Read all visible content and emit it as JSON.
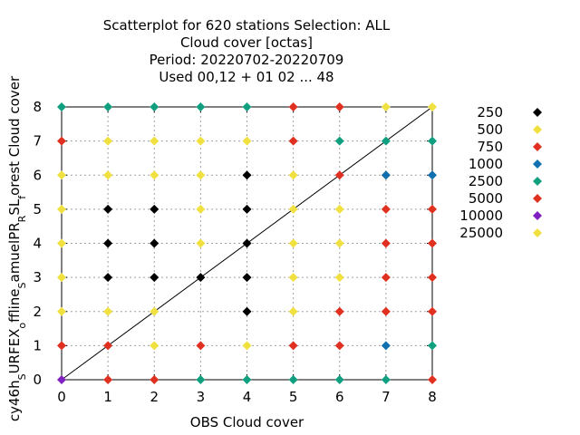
{
  "chart_data": {
    "type": "scatter",
    "title_lines": [
      "Scatterplot for  620 stations Selection: ALL",
      "Cloud cover [octas]",
      "Period: 20220702-20220709",
      "Used  00,12  + 01 02 ... 48"
    ],
    "xlabel": "OBS Cloud cover",
    "ylabel": "cy46h_SURFEX_offline_SamuelPR_RSL_forest Cloud cover",
    "ylabel_parts": [
      {
        "text": "cy46h",
        "sub": false
      },
      {
        "text": "S",
        "sub": true
      },
      {
        "text": "URFEX",
        "sub": false
      },
      {
        "text": "o",
        "sub": true
      },
      {
        "text": "ffline",
        "sub": false
      },
      {
        "text": "S",
        "sub": true
      },
      {
        "text": "amuelPR",
        "sub": false
      },
      {
        "text": "R",
        "sub": true
      },
      {
        "text": "SL",
        "sub": false
      },
      {
        "text": "f",
        "sub": true
      },
      {
        "text": "orest Cloud cover",
        "sub": false
      }
    ],
    "xlim": [
      0,
      8
    ],
    "ylim": [
      0,
      8
    ],
    "xticks": [
      "0",
      "1",
      "2",
      "3",
      "4",
      "5",
      "6",
      "7",
      "8"
    ],
    "yticks": [
      "0",
      "1",
      "2",
      "3",
      "4",
      "5",
      "6",
      "7",
      "8"
    ],
    "grid": true,
    "diagonal": true,
    "legend_position": "right",
    "series": [
      {
        "name": "250",
        "color": "#000000",
        "points": [
          [
            1,
            3
          ],
          [
            1,
            4
          ],
          [
            1,
            5
          ],
          [
            2,
            3
          ],
          [
            2,
            4
          ],
          [
            2,
            5
          ],
          [
            3,
            3
          ],
          [
            4,
            2
          ],
          [
            4,
            3
          ],
          [
            4,
            4
          ],
          [
            4,
            5
          ],
          [
            4,
            6
          ]
        ]
      },
      {
        "name": "500",
        "color": "#f0e040",
        "points": [
          [
            0,
            2
          ],
          [
            0,
            3
          ],
          [
            0,
            4
          ],
          [
            0,
            5
          ],
          [
            0,
            6
          ],
          [
            1,
            2
          ],
          [
            1,
            6
          ],
          [
            1,
            7
          ],
          [
            2,
            1
          ],
          [
            2,
            2
          ],
          [
            2,
            6
          ],
          [
            2,
            7
          ],
          [
            3,
            4
          ],
          [
            3,
            5
          ],
          [
            3,
            6
          ],
          [
            3,
            7
          ],
          [
            4,
            1
          ],
          [
            4,
            7
          ],
          [
            5,
            2
          ],
          [
            5,
            3
          ],
          [
            5,
            4
          ],
          [
            5,
            5
          ],
          [
            5,
            6
          ],
          [
            6,
            3
          ],
          [
            6,
            4
          ],
          [
            6,
            5
          ],
          [
            7,
            6
          ],
          [
            7,
            8
          ],
          [
            8,
            8
          ]
        ]
      },
      {
        "name": "750",
        "color": "#e03020",
        "points": [
          [
            0,
            1
          ],
          [
            1,
            1
          ],
          [
            3,
            1
          ],
          [
            6,
            2
          ],
          [
            6,
            6
          ],
          [
            7,
            2
          ],
          [
            7,
            3
          ],
          [
            7,
            4
          ],
          [
            7,
            5
          ],
          [
            8,
            2
          ],
          [
            8,
            3
          ],
          [
            8,
            4
          ],
          [
            8,
            5
          ]
        ]
      },
      {
        "name": "1000",
        "color": "#1070b0",
        "points": [
          [
            7,
            1
          ],
          [
            7,
            6
          ],
          [
            8,
            6
          ]
        ]
      },
      {
        "name": "2500",
        "color": "#10a080",
        "points": [
          [
            0,
            8
          ],
          [
            1,
            8
          ],
          [
            2,
            8
          ],
          [
            3,
            0
          ],
          [
            3,
            8
          ],
          [
            4,
            0
          ],
          [
            4,
            8
          ],
          [
            5,
            0
          ],
          [
            6,
            0
          ],
          [
            6,
            7
          ],
          [
            7,
            0
          ],
          [
            7,
            7
          ],
          [
            8,
            1
          ],
          [
            8,
            7
          ]
        ]
      },
      {
        "name": "5000",
        "color": "#e03020",
        "points": [
          [
            0,
            7
          ],
          [
            1,
            0
          ],
          [
            2,
            0
          ],
          [
            5,
            1
          ],
          [
            5,
            7
          ],
          [
            5,
            8
          ],
          [
            6,
            1
          ],
          [
            6,
            8
          ],
          [
            8,
            0
          ]
        ]
      },
      {
        "name": "10000",
        "color": "#8020c0",
        "points": [
          [
            0,
            0
          ]
        ]
      },
      {
        "name": "25000",
        "color": "#f0e040",
        "points": []
      }
    ]
  }
}
